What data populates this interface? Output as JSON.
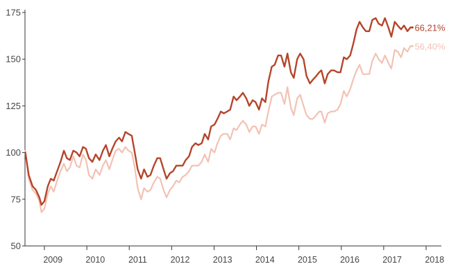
{
  "chart_data": {
    "type": "line",
    "title": "",
    "xlabel": "",
    "ylabel": "",
    "ylim": [
      50,
      175
    ],
    "yticks": [
      50,
      75,
      100,
      125,
      150,
      175
    ],
    "xlim": [
      2008.55,
      2018.55
    ],
    "year_labels": [
      {
        "label": "2009",
        "x": 2009.2
      },
      {
        "label": "2010",
        "x": 2010.2
      },
      {
        "label": "2011",
        "x": 2011.2
      },
      {
        "label": "2012",
        "x": 2012.2
      },
      {
        "label": "2013",
        "x": 2013.2
      },
      {
        "label": "2014",
        "x": 2014.2
      },
      {
        "label": "2015",
        "x": 2015.2
      },
      {
        "label": "2016",
        "x": 2016.2
      },
      {
        "label": "2017",
        "x": 2017.2
      },
      {
        "label": "2018",
        "x": 2018.2
      }
    ],
    "year_ticks": [
      2009,
      2010,
      2011,
      2012,
      2013,
      2014,
      2015,
      2016,
      2017,
      2018
    ],
    "grid": false,
    "series": [
      {
        "name": "",
        "end_label": "66,21%",
        "color": "#b5442a",
        "points": [
          [
            2008.55,
            100
          ],
          [
            2008.63,
            88
          ],
          [
            2008.72,
            82
          ],
          [
            2008.8,
            80
          ],
          [
            2008.88,
            76
          ],
          [
            2008.93,
            72
          ],
          [
            2009.0,
            74
          ],
          [
            2009.08,
            82
          ],
          [
            2009.15,
            86
          ],
          [
            2009.22,
            85
          ],
          [
            2009.3,
            90
          ],
          [
            2009.38,
            95
          ],
          [
            2009.46,
            101
          ],
          [
            2009.53,
            97
          ],
          [
            2009.6,
            96
          ],
          [
            2009.68,
            101
          ],
          [
            2009.76,
            100
          ],
          [
            2009.83,
            98
          ],
          [
            2009.91,
            103
          ],
          [
            2009.98,
            102
          ],
          [
            2010.05,
            97
          ],
          [
            2010.13,
            95
          ],
          [
            2010.21,
            99
          ],
          [
            2010.3,
            96
          ],
          [
            2010.38,
            101
          ],
          [
            2010.45,
            104
          ],
          [
            2010.53,
            98
          ],
          [
            2010.6,
            102
          ],
          [
            2010.68,
            106
          ],
          [
            2010.76,
            108
          ],
          [
            2010.83,
            106
          ],
          [
            2010.91,
            111
          ],
          [
            2010.98,
            110
          ],
          [
            2011.06,
            109
          ],
          [
            2011.13,
            100
          ],
          [
            2011.2,
            91
          ],
          [
            2011.28,
            86
          ],
          [
            2011.35,
            91
          ],
          [
            2011.43,
            87
          ],
          [
            2011.5,
            88
          ],
          [
            2011.58,
            93
          ],
          [
            2011.66,
            97
          ],
          [
            2011.73,
            97
          ],
          [
            2011.81,
            91
          ],
          [
            2011.88,
            86
          ],
          [
            2011.96,
            89
          ],
          [
            2012.03,
            90
          ],
          [
            2012.11,
            93
          ],
          [
            2012.18,
            93
          ],
          [
            2012.26,
            93
          ],
          [
            2012.33,
            96
          ],
          [
            2012.41,
            98
          ],
          [
            2012.48,
            103
          ],
          [
            2012.56,
            105
          ],
          [
            2012.63,
            104
          ],
          [
            2012.71,
            105
          ],
          [
            2012.78,
            110
          ],
          [
            2012.86,
            107
          ],
          [
            2012.93,
            114
          ],
          [
            2013.01,
            115
          ],
          [
            2013.08,
            118
          ],
          [
            2013.16,
            122
          ],
          [
            2013.23,
            121
          ],
          [
            2013.31,
            122
          ],
          [
            2013.38,
            123
          ],
          [
            2013.46,
            130
          ],
          [
            2013.53,
            128
          ],
          [
            2013.61,
            130
          ],
          [
            2013.68,
            132
          ],
          [
            2013.76,
            129
          ],
          [
            2013.83,
            125
          ],
          [
            2013.91,
            128
          ],
          [
            2013.98,
            127
          ],
          [
            2014.06,
            123
          ],
          [
            2014.13,
            129
          ],
          [
            2014.21,
            127
          ],
          [
            2014.28,
            138
          ],
          [
            2014.36,
            146
          ],
          [
            2014.43,
            147
          ],
          [
            2014.51,
            152
          ],
          [
            2014.58,
            152
          ],
          [
            2014.66,
            146
          ],
          [
            2014.73,
            153
          ],
          [
            2014.81,
            143
          ],
          [
            2014.88,
            140
          ],
          [
            2014.96,
            150
          ],
          [
            2015.03,
            153
          ],
          [
            2015.11,
            150
          ],
          [
            2015.18,
            141
          ],
          [
            2015.26,
            137
          ],
          [
            2015.33,
            139
          ],
          [
            2015.41,
            141
          ],
          [
            2015.48,
            143
          ],
          [
            2015.53,
            144
          ],
          [
            2015.61,
            137
          ],
          [
            2015.68,
            142
          ],
          [
            2015.76,
            144
          ],
          [
            2015.83,
            144
          ],
          [
            2015.91,
            143
          ],
          [
            2015.98,
            143
          ],
          [
            2016.06,
            151
          ],
          [
            2016.13,
            150
          ],
          [
            2016.21,
            152
          ],
          [
            2016.28,
            158
          ],
          [
            2016.36,
            166
          ],
          [
            2016.43,
            170
          ],
          [
            2016.51,
            167
          ],
          [
            2016.58,
            165
          ],
          [
            2016.66,
            165
          ],
          [
            2016.73,
            171
          ],
          [
            2016.81,
            172
          ],
          [
            2016.88,
            169
          ],
          [
            2016.96,
            168
          ],
          [
            2017.03,
            172
          ],
          [
            2017.11,
            167
          ],
          [
            2017.18,
            162
          ],
          [
            2017.26,
            170
          ],
          [
            2017.33,
            168
          ],
          [
            2017.41,
            166
          ],
          [
            2017.48,
            168
          ],
          [
            2017.56,
            165
          ],
          [
            2017.63,
            167
          ],
          [
            2017.68,
            167
          ]
        ]
      },
      {
        "name": "",
        "end_label": "56,40%",
        "color": "#f2c2b4",
        "points": [
          [
            2008.55,
            101
          ],
          [
            2008.63,
            86
          ],
          [
            2008.72,
            80
          ],
          [
            2008.8,
            78
          ],
          [
            2008.88,
            74
          ],
          [
            2008.93,
            68
          ],
          [
            2009.0,
            70
          ],
          [
            2009.08,
            78
          ],
          [
            2009.15,
            82
          ],
          [
            2009.22,
            79
          ],
          [
            2009.3,
            85
          ],
          [
            2009.38,
            90
          ],
          [
            2009.46,
            94
          ],
          [
            2009.53,
            90
          ],
          [
            2009.6,
            92
          ],
          [
            2009.68,
            98
          ],
          [
            2009.76,
            93
          ],
          [
            2009.83,
            92
          ],
          [
            2009.91,
            99
          ],
          [
            2009.98,
            96
          ],
          [
            2010.05,
            88
          ],
          [
            2010.13,
            86
          ],
          [
            2010.21,
            91
          ],
          [
            2010.3,
            88
          ],
          [
            2010.38,
            93
          ],
          [
            2010.45,
            96
          ],
          [
            2010.53,
            91
          ],
          [
            2010.6,
            96
          ],
          [
            2010.68,
            101
          ],
          [
            2010.76,
            102
          ],
          [
            2010.83,
            100
          ],
          [
            2010.91,
            103
          ],
          [
            2010.98,
            101
          ],
          [
            2011.06,
            100
          ],
          [
            2011.13,
            92
          ],
          [
            2011.2,
            81
          ],
          [
            2011.28,
            75
          ],
          [
            2011.35,
            81
          ],
          [
            2011.43,
            79
          ],
          [
            2011.5,
            80
          ],
          [
            2011.58,
            84
          ],
          [
            2011.66,
            87
          ],
          [
            2011.73,
            86
          ],
          [
            2011.81,
            80
          ],
          [
            2011.88,
            76
          ],
          [
            2011.96,
            80
          ],
          [
            2012.03,
            82
          ],
          [
            2012.11,
            85
          ],
          [
            2012.18,
            84
          ],
          [
            2012.26,
            87
          ],
          [
            2012.33,
            88
          ],
          [
            2012.41,
            90
          ],
          [
            2012.48,
            93
          ],
          [
            2012.56,
            93
          ],
          [
            2012.63,
            93
          ],
          [
            2012.71,
            95
          ],
          [
            2012.78,
            99
          ],
          [
            2012.86,
            95
          ],
          [
            2012.93,
            102
          ],
          [
            2013.01,
            100
          ],
          [
            2013.08,
            105
          ],
          [
            2013.16,
            109
          ],
          [
            2013.23,
            110
          ],
          [
            2013.31,
            110
          ],
          [
            2013.38,
            107
          ],
          [
            2013.46,
            113
          ],
          [
            2013.53,
            112
          ],
          [
            2013.61,
            115
          ],
          [
            2013.68,
            117
          ],
          [
            2013.76,
            115
          ],
          [
            2013.83,
            111
          ],
          [
            2013.91,
            114
          ],
          [
            2013.98,
            114
          ],
          [
            2014.06,
            110
          ],
          [
            2014.13,
            115
          ],
          [
            2014.21,
            114
          ],
          [
            2014.28,
            122
          ],
          [
            2014.36,
            130
          ],
          [
            2014.43,
            131
          ],
          [
            2014.51,
            132
          ],
          [
            2014.58,
            132
          ],
          [
            2014.66,
            126
          ],
          [
            2014.73,
            135
          ],
          [
            2014.81,
            124
          ],
          [
            2014.88,
            120
          ],
          [
            2014.96,
            129
          ],
          [
            2015.03,
            131
          ],
          [
            2015.11,
            125
          ],
          [
            2015.18,
            120
          ],
          [
            2015.26,
            118
          ],
          [
            2015.33,
            118
          ],
          [
            2015.41,
            120
          ],
          [
            2015.48,
            122
          ],
          [
            2015.53,
            122
          ],
          [
            2015.61,
            116
          ],
          [
            2015.68,
            121
          ],
          [
            2015.76,
            122
          ],
          [
            2015.83,
            122
          ],
          [
            2015.91,
            123
          ],
          [
            2015.98,
            126
          ],
          [
            2016.06,
            133
          ],
          [
            2016.13,
            130
          ],
          [
            2016.21,
            134
          ],
          [
            2016.28,
            139
          ],
          [
            2016.36,
            144
          ],
          [
            2016.43,
            147
          ],
          [
            2016.51,
            142
          ],
          [
            2016.58,
            142
          ],
          [
            2016.66,
            142
          ],
          [
            2016.73,
            149
          ],
          [
            2016.81,
            153
          ],
          [
            2016.88,
            150
          ],
          [
            2016.96,
            148
          ],
          [
            2017.03,
            152
          ],
          [
            2017.11,
            148
          ],
          [
            2017.18,
            145
          ],
          [
            2017.26,
            155
          ],
          [
            2017.33,
            154
          ],
          [
            2017.41,
            151
          ],
          [
            2017.48,
            156
          ],
          [
            2017.56,
            154
          ],
          [
            2017.63,
            157
          ],
          [
            2017.68,
            157
          ]
        ]
      }
    ]
  }
}
